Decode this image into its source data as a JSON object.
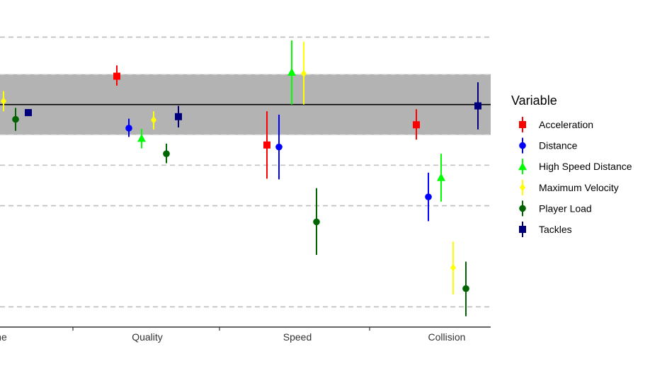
{
  "chart_data": {
    "type": "scatter",
    "subtype": "point-range",
    "categories": [
      "Volume",
      "Quality",
      "Speed",
      "Collision"
    ],
    "category_tick_labels": [
      "me",
      "Quality",
      "Speed",
      "Collision"
    ],
    "y_range": [
      -3.3,
      1.55
    ],
    "reference_line": 0,
    "shaded_band": [
      -0.45,
      0.45
    ],
    "dashed_gridlines": [
      1.0,
      -0.9,
      -1.5,
      -3.0
    ],
    "grid": "horizontal dashed",
    "legend": {
      "title": "Variable",
      "position": "right"
    },
    "series": [
      {
        "name": "Acceleration",
        "color": "#FF0000",
        "shape": "square",
        "points": [
          {
            "category": "Volume",
            "y": null,
            "low": null,
            "high": null
          },
          {
            "category": "Quality",
            "y": 0.42,
            "low": 0.28,
            "high": 0.58
          },
          {
            "category": "Speed",
            "y": -0.6,
            "low": -1.1,
            "high": -0.1
          },
          {
            "category": "Collision",
            "y": -0.3,
            "low": -0.52,
            "high": -0.07
          }
        ]
      },
      {
        "name": "Distance",
        "color": "#0000FF",
        "shape": "circle",
        "points": [
          {
            "category": "Volume",
            "y": null,
            "low": null,
            "high": null
          },
          {
            "category": "Quality",
            "y": -0.35,
            "low": -0.48,
            "high": -0.21
          },
          {
            "category": "Speed",
            "y": -0.63,
            "low": -1.11,
            "high": -0.15
          },
          {
            "category": "Collision",
            "y": -1.37,
            "low": -1.73,
            "high": -1.01
          }
        ]
      },
      {
        "name": "High Speed Distance",
        "color": "#00FF00",
        "shape": "triangle",
        "points": [
          {
            "category": "Volume",
            "y": null,
            "low": null,
            "high": null
          },
          {
            "category": "Quality",
            "y": -0.5,
            "low": -0.65,
            "high": -0.36
          },
          {
            "category": "Speed",
            "y": 0.48,
            "low": 0.0,
            "high": 0.95
          },
          {
            "category": "Collision",
            "y": -1.08,
            "low": -1.44,
            "high": -0.73
          }
        ]
      },
      {
        "name": "Maximum Velocity",
        "color": "#FFFF00",
        "shape": "diamond",
        "points": [
          {
            "category": "Volume",
            "y": 0.05,
            "low": -0.1,
            "high": 0.2
          },
          {
            "category": "Quality",
            "y": -0.23,
            "low": -0.37,
            "high": -0.1
          },
          {
            "category": "Speed",
            "y": 0.46,
            "low": 0.0,
            "high": 0.93
          },
          {
            "category": "Collision",
            "y": -2.42,
            "low": -2.82,
            "high": -2.03
          }
        ]
      },
      {
        "name": "Player Load",
        "color": "#006400",
        "shape": "circle",
        "points": [
          {
            "category": "Volume",
            "y": -0.22,
            "low": -0.39,
            "high": -0.05
          },
          {
            "category": "Quality",
            "y": -0.73,
            "low": -0.87,
            "high": -0.58
          },
          {
            "category": "Speed",
            "y": -1.74,
            "low": -2.23,
            "high": -1.24
          },
          {
            "category": "Collision",
            "y": -2.73,
            "low": -3.14,
            "high": -2.33
          }
        ]
      },
      {
        "name": "Tackles",
        "color": "#00007F",
        "shape": "square",
        "points": [
          {
            "category": "Volume",
            "y": -0.12,
            "low": null,
            "high": null
          },
          {
            "category": "Quality",
            "y": -0.18,
            "low": -0.34,
            "high": -0.02
          },
          {
            "category": "Speed",
            "y": null,
            "low": null,
            "high": null
          },
          {
            "category": "Collision",
            "y": -0.02,
            "low": -0.37,
            "high": 0.33
          }
        ]
      }
    ]
  }
}
